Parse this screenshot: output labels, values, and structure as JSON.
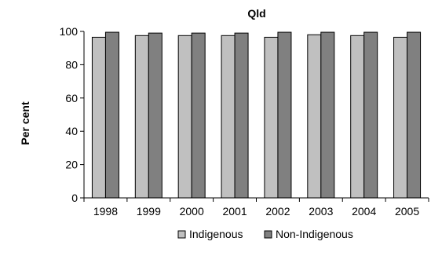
{
  "chart_data": {
    "type": "bar",
    "title": "Qld",
    "xlabel": "",
    "ylabel": "Per cent",
    "ylim": [
      0,
      100
    ],
    "yticks": [
      0,
      20,
      40,
      60,
      80,
      100
    ],
    "categories": [
      "1998",
      "1999",
      "2000",
      "2001",
      "2002",
      "2003",
      "2004",
      "2005"
    ],
    "series": [
      {
        "name": "Indigenous",
        "color": "#c0c0c0",
        "values": [
          96.5,
          97.5,
          97.5,
          97.5,
          96.5,
          98.0,
          97.5,
          96.5
        ]
      },
      {
        "name": "Non-Indigenous",
        "color": "#808080",
        "values": [
          99.5,
          99.0,
          99.0,
          99.0,
          99.5,
          99.5,
          99.5,
          99.5
        ]
      }
    ],
    "grid": false,
    "legend": "bottom"
  }
}
